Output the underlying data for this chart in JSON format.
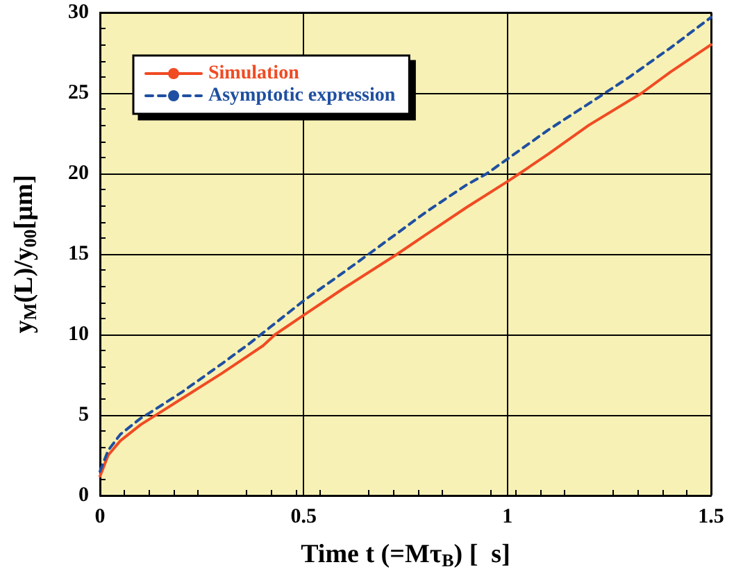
{
  "chart_data": {
    "type": "line",
    "xlabel": "Time t (=Mτ$_{B}$) [  s]",
    "ylabel": "y$_{M}$(L)/y$_{00}$[μm]",
    "xlim": [
      0,
      1.5
    ],
    "xticks": [
      0,
      0.5,
      1,
      1.5
    ],
    "ylim": [
      0,
      30
    ],
    "yticks": [
      0,
      5,
      10,
      15,
      20,
      25,
      30
    ],
    "grid": true,
    "legend": "top left",
    "marker": "none",
    "series": [
      {
        "name": "Simulation",
        "color": "#f04b23",
        "line_style": "solid",
        "x": [
          0,
          0.02,
          0.05,
          0.1,
          0.15,
          0.2,
          0.3,
          0.4,
          0.43,
          0.5,
          0.6,
          0.73,
          0.8,
          0.9,
          1.0,
          1.03,
          1.1,
          1.2,
          1.33,
          1.4,
          1.5
        ],
        "values": [
          1.2,
          2.5,
          3.4,
          4.4,
          5.2,
          6.0,
          7.6,
          9.3,
          10,
          11.2,
          12.9,
          15,
          16.2,
          17.9,
          19.5,
          20,
          21.2,
          23.0,
          25,
          26.3,
          28.0
        ]
      },
      {
        "name": "Asymptotic expression",
        "color": "#1f4fa0",
        "line_style": "dashed",
        "x": [
          0,
          0.02,
          0.05,
          0.1,
          0.12,
          0.2,
          0.3,
          0.37,
          0.4,
          0.5,
          0.6,
          0.66,
          0.8,
          0.9,
          0.95,
          1.0,
          1.1,
          1.24,
          1.3,
          1.4,
          1.5
        ],
        "values": [
          1.5,
          2.8,
          3.8,
          4.8,
          5.1,
          6.4,
          8.2,
          9.5,
          10.1,
          12.1,
          13.9,
          15,
          17.6,
          19.3,
          20,
          20.9,
          22.7,
          25,
          26.0,
          27.8,
          29.7
        ]
      }
    ]
  }
}
